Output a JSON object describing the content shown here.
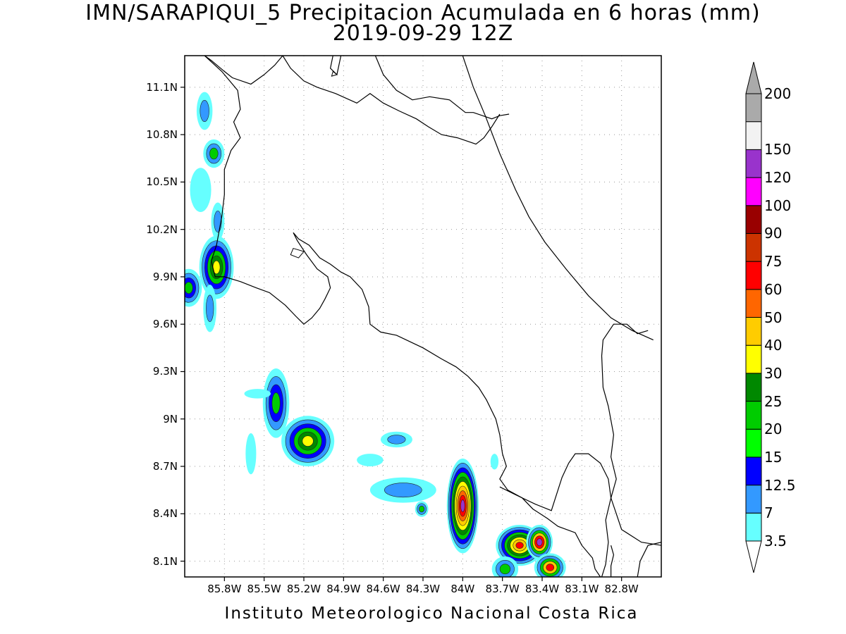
{
  "title": {
    "line1": "IMN/SARAPIQUI_5 Precipitacion Acumulada en 6 horas (mm)",
    "line2": "2019-09-29 12Z"
  },
  "footer": "Instituto Meteorologico Nacional Costa Rica",
  "map": {
    "lon_range": [
      -86.1,
      -82.5
    ],
    "lat_range": [
      8.0,
      11.3
    ],
    "lat_ticks": [
      {
        "value": 11.1,
        "label": "11.1N"
      },
      {
        "value": 10.8,
        "label": "10.8N"
      },
      {
        "value": 10.5,
        "label": "10.5N"
      },
      {
        "value": 10.2,
        "label": "10.2N"
      },
      {
        "value": 9.9,
        "label": "9.9N"
      },
      {
        "value": 9.6,
        "label": "9.6N"
      },
      {
        "value": 9.3,
        "label": "9.3N"
      },
      {
        "value": 9.0,
        "label": "9N"
      },
      {
        "value": 8.7,
        "label": "8.7N"
      },
      {
        "value": 8.4,
        "label": "8.4N"
      },
      {
        "value": 8.1,
        "label": "8.1N"
      }
    ],
    "lon_ticks": [
      {
        "value": -85.8,
        "label": "85.8W"
      },
      {
        "value": -85.5,
        "label": "85.5W"
      },
      {
        "value": -85.2,
        "label": "85.2W"
      },
      {
        "value": -84.9,
        "label": "84.9W"
      },
      {
        "value": -84.6,
        "label": "84.6W"
      },
      {
        "value": -84.3,
        "label": "84.3W"
      },
      {
        "value": -84.0,
        "label": "84W"
      },
      {
        "value": -83.7,
        "label": "83.7W"
      },
      {
        "value": -83.4,
        "label": "83.4W"
      },
      {
        "value": -83.1,
        "label": "83.1W"
      },
      {
        "value": -82.8,
        "label": "82.8W"
      }
    ],
    "grid": "dotted"
  },
  "colorbar": {
    "levels": [
      {
        "label": "3.5",
        "color": "#66ffff"
      },
      {
        "label": "7",
        "color": "#3399ff"
      },
      {
        "label": "12.5",
        "color": "#0000ff"
      },
      {
        "label": "15",
        "color": "#00ff00"
      },
      {
        "label": "20",
        "color": "#00cc00"
      },
      {
        "label": "25",
        "color": "#008800"
      },
      {
        "label": "30",
        "color": "#ffff00"
      },
      {
        "label": "40",
        "color": "#ffcc00"
      },
      {
        "label": "50",
        "color": "#ff6600"
      },
      {
        "label": "60",
        "color": "#ff0000"
      },
      {
        "label": "75",
        "color": "#cc3300"
      },
      {
        "label": "90",
        "color": "#990000"
      },
      {
        "label": "100",
        "color": "#ff00ff"
      },
      {
        "label": "120",
        "color": "#9933cc"
      },
      {
        "label": "150",
        "color": "#f2f2f2"
      },
      {
        "label": "200",
        "color": "#aaaaaa"
      }
    ],
    "under_color": "#ffffff",
    "over_color": "#aaaaaa"
  },
  "precip_cells": [
    {
      "lon": -85.95,
      "lat": 10.95,
      "rlon": 0.06,
      "rlat": 0.12,
      "levels": [
        "#66ffff",
        "#3399ff"
      ]
    },
    {
      "lon": -85.88,
      "lat": 10.68,
      "rlon": 0.08,
      "rlat": 0.09,
      "levels": [
        "#66ffff",
        "#3399ff",
        "#00cc00"
      ]
    },
    {
      "lon": -85.98,
      "lat": 10.45,
      "rlon": 0.08,
      "rlat": 0.14,
      "levels": [
        "#66ffff"
      ]
    },
    {
      "lon": -85.86,
      "lat": 9.96,
      "rlon": 0.13,
      "rlat": 0.2,
      "levels": [
        "#66ffff",
        "#3399ff",
        "#0000ff",
        "#00cc00",
        "#008800",
        "#ffff00"
      ]
    },
    {
      "lon": -86.07,
      "lat": 9.83,
      "rlon": 0.1,
      "rlat": 0.12,
      "levels": [
        "#66ffff",
        "#3399ff",
        "#0000ff",
        "#00cc00"
      ]
    },
    {
      "lon": -85.91,
      "lat": 9.7,
      "rlon": 0.05,
      "rlat": 0.15,
      "levels": [
        "#66ffff",
        "#3399ff"
      ]
    },
    {
      "lon": -85.85,
      "lat": 10.25,
      "rlon": 0.05,
      "rlat": 0.12,
      "levels": [
        "#66ffff",
        "#3399ff"
      ]
    },
    {
      "lon": -85.41,
      "lat": 9.1,
      "rlon": 0.1,
      "rlat": 0.22,
      "levels": [
        "#66ffff",
        "#3399ff",
        "#0000ff",
        "#00cc00"
      ]
    },
    {
      "lon": -85.17,
      "lat": 8.86,
      "rlon": 0.2,
      "rlat": 0.16,
      "levels": [
        "#66ffff",
        "#3399ff",
        "#0000ff",
        "#00cc00",
        "#008800",
        "#ffff00"
      ]
    },
    {
      "lon": -85.55,
      "lat": 9.16,
      "rlon": 0.1,
      "rlat": 0.03,
      "levels": [
        "#66ffff"
      ]
    },
    {
      "lon": -85.6,
      "lat": 8.78,
      "rlon": 0.04,
      "rlat": 0.13,
      "levels": [
        "#66ffff"
      ]
    },
    {
      "lon": -84.5,
      "lat": 8.87,
      "rlon": 0.12,
      "rlat": 0.05,
      "levels": [
        "#66ffff",
        "#3399ff"
      ]
    },
    {
      "lon": -84.45,
      "lat": 8.55,
      "rlon": 0.25,
      "rlat": 0.08,
      "levels": [
        "#66ffff",
        "#3399ff"
      ]
    },
    {
      "lon": -84.31,
      "lat": 8.43,
      "rlon": 0.05,
      "rlat": 0.05,
      "levels": [
        "#66ffff",
        "#3399ff",
        "#00cc00"
      ]
    },
    {
      "lon": -84.7,
      "lat": 8.74,
      "rlon": 0.1,
      "rlat": 0.04,
      "levels": [
        "#66ffff"
      ]
    },
    {
      "lon": -84.0,
      "lat": 8.45,
      "rlon": 0.12,
      "rlat": 0.3,
      "levels": [
        "#66ffff",
        "#3399ff",
        "#0000ff",
        "#00cc00",
        "#008800",
        "#ffff00",
        "#ffcc00",
        "#ff6600",
        "#ff0000",
        "#9933cc"
      ]
    },
    {
      "lon": -83.57,
      "lat": 8.2,
      "rlon": 0.18,
      "rlat": 0.13,
      "levels": [
        "#66ffff",
        "#3399ff",
        "#0000ff",
        "#00cc00",
        "#008800",
        "#ffff00",
        "#ffcc00",
        "#ff0000"
      ]
    },
    {
      "lon": -83.42,
      "lat": 8.22,
      "rlon": 0.1,
      "rlat": 0.11,
      "levels": [
        "#66ffff",
        "#3399ff",
        "#00cc00",
        "#ffcc00",
        "#ff0000",
        "#9933cc"
      ]
    },
    {
      "lon": -83.34,
      "lat": 8.06,
      "rlon": 0.12,
      "rlat": 0.09,
      "levels": [
        "#66ffff",
        "#3399ff",
        "#00cc00",
        "#ffcc00",
        "#ff0000"
      ]
    },
    {
      "lon": -83.68,
      "lat": 8.05,
      "rlon": 0.1,
      "rlat": 0.08,
      "levels": [
        "#66ffff",
        "#3399ff",
        "#00cc00"
      ]
    },
    {
      "lon": -83.76,
      "lat": 8.73,
      "rlon": 0.03,
      "rlat": 0.05,
      "levels": [
        "#66ffff"
      ]
    }
  ],
  "coastlines": [
    [
      [
        -85.95,
        11.3
      ],
      [
        -85.82,
        11.2
      ],
      [
        -85.7,
        11.08
      ],
      [
        -85.68,
        10.96
      ],
      [
        -85.73,
        10.88
      ],
      [
        -85.68,
        10.78
      ],
      [
        -85.75,
        10.7
      ],
      [
        -85.8,
        10.58
      ],
      [
        -85.8,
        10.42
      ],
      [
        -85.82,
        10.28
      ],
      [
        -85.86,
        10.1
      ],
      [
        -85.9,
        10.0
      ],
      [
        -85.87,
        9.9
      ],
      [
        -85.8,
        9.9
      ],
      [
        -85.68,
        9.87
      ],
      [
        -85.56,
        9.83
      ],
      [
        -85.46,
        9.8
      ],
      [
        -85.34,
        9.72
      ],
      [
        -85.26,
        9.65
      ],
      [
        -85.2,
        9.6
      ],
      [
        -85.14,
        9.64
      ],
      [
        -85.08,
        9.7
      ],
      [
        -85.04,
        9.76
      ],
      [
        -85.0,
        9.83
      ],
      [
        -85.02,
        9.9
      ],
      [
        -85.1,
        9.95
      ],
      [
        -85.18,
        10.04
      ],
      [
        -85.25,
        10.13
      ],
      [
        -85.28,
        10.18
      ],
      [
        -85.24,
        10.14
      ],
      [
        -85.16,
        10.1
      ],
      [
        -85.08,
        10.02
      ],
      [
        -85.0,
        9.98
      ],
      [
        -84.92,
        9.93
      ],
      [
        -84.85,
        9.9
      ],
      [
        -84.76,
        9.82
      ],
      [
        -84.71,
        9.71
      ],
      [
        -84.7,
        9.6
      ],
      [
        -84.62,
        9.55
      ],
      [
        -84.5,
        9.53
      ],
      [
        -84.3,
        9.45
      ],
      [
        -84.16,
        9.38
      ],
      [
        -84.05,
        9.33
      ],
      [
        -83.96,
        9.27
      ],
      [
        -83.88,
        9.2
      ],
      [
        -83.82,
        9.12
      ],
      [
        -83.75,
        9.0
      ],
      [
        -83.72,
        8.9
      ],
      [
        -83.7,
        8.78
      ],
      [
        -83.67,
        8.7
      ],
      [
        -83.72,
        8.62
      ],
      [
        -83.66,
        8.55
      ],
      [
        -83.55,
        8.5
      ],
      [
        -83.47,
        8.43
      ],
      [
        -83.36,
        8.37
      ],
      [
        -83.28,
        8.32
      ],
      [
        -83.15,
        8.28
      ],
      [
        -83.1,
        8.2
      ],
      [
        -83.02,
        8.12
      ],
      [
        -83.0,
        8.05
      ],
      [
        -82.96,
        8.0
      ]
    ],
    [
      [
        -83.72,
        8.57
      ],
      [
        -83.6,
        8.52
      ],
      [
        -83.45,
        8.46
      ],
      [
        -83.33,
        8.42
      ],
      [
        -83.3,
        8.5
      ],
      [
        -83.25,
        8.63
      ],
      [
        -83.2,
        8.72
      ],
      [
        -83.15,
        8.78
      ],
      [
        -83.05,
        8.78
      ],
      [
        -82.96,
        8.72
      ],
      [
        -82.9,
        8.62
      ],
      [
        -82.88,
        8.5
      ],
      [
        -82.84,
        8.4
      ],
      [
        -82.8,
        8.3
      ],
      [
        -82.65,
        8.22
      ],
      [
        -82.5,
        8.2
      ]
    ],
    [
      [
        -82.88,
        8.0
      ],
      [
        -82.88,
        8.07
      ],
      [
        -82.86,
        8.14
      ],
      [
        -82.88,
        8.2
      ]
    ],
    [
      [
        -84.66,
        11.3
      ],
      [
        -84.6,
        11.18
      ],
      [
        -84.5,
        11.08
      ],
      [
        -84.38,
        11.02
      ],
      [
        -84.25,
        11.04
      ],
      [
        -84.1,
        11.02
      ],
      [
        -83.98,
        10.94
      ],
      [
        -83.92,
        10.94
      ],
      [
        -83.85,
        10.92
      ],
      [
        -83.78,
        10.9
      ],
      [
        -83.72,
        10.92
      ],
      [
        -83.65,
        10.93
      ]
    ],
    [
      [
        -84.0,
        11.3
      ],
      [
        -83.92,
        11.1
      ],
      [
        -83.83,
        10.92
      ],
      [
        -83.72,
        10.68
      ],
      [
        -83.6,
        10.45
      ],
      [
        -83.5,
        10.28
      ],
      [
        -83.38,
        10.12
      ],
      [
        -83.22,
        9.95
      ],
      [
        -83.05,
        9.78
      ],
      [
        -82.88,
        9.64
      ],
      [
        -82.72,
        9.56
      ],
      [
        -82.56,
        9.5
      ]
    ],
    [
      [
        -85.95,
        11.3
      ],
      [
        -85.9,
        11.27
      ],
      [
        -85.8,
        11.2
      ],
      [
        -85.74,
        11.16
      ],
      [
        -85.6,
        11.12
      ],
      [
        -85.5,
        11.18
      ],
      [
        -85.42,
        11.24
      ],
      [
        -85.36,
        11.3
      ]
    ],
    [
      [
        -84.98,
        11.3
      ],
      [
        -85.0,
        11.22
      ],
      [
        -84.95,
        11.18
      ],
      [
        -84.92,
        11.3
      ]
    ],
    [
      [
        -85.36,
        11.3
      ],
      [
        -85.3,
        11.22
      ],
      [
        -85.2,
        11.14
      ],
      [
        -85.1,
        11.1
      ],
      [
        -84.96,
        11.06
      ],
      [
        -84.8,
        11.0
      ],
      [
        -84.7,
        11.06
      ],
      [
        -84.6,
        11.0
      ],
      [
        -84.48,
        10.95
      ],
      [
        -84.35,
        10.9
      ],
      [
        -84.26,
        10.85
      ],
      [
        -84.16,
        10.8
      ],
      [
        -84.04,
        10.78
      ],
      [
        -83.9,
        10.74
      ],
      [
        -83.84,
        10.78
      ],
      [
        -83.78,
        10.85
      ],
      [
        -83.72,
        10.93
      ]
    ],
    [
      [
        -82.95,
        8.0
      ],
      [
        -82.92,
        8.08
      ],
      [
        -82.9,
        8.22
      ],
      [
        -82.92,
        8.36
      ],
      [
        -82.88,
        8.5
      ],
      [
        -82.84,
        8.62
      ],
      [
        -82.88,
        8.76
      ],
      [
        -82.86,
        8.9
      ],
      [
        -82.9,
        9.08
      ],
      [
        -82.94,
        9.2
      ],
      [
        -82.95,
        9.4
      ],
      [
        -82.94,
        9.5
      ],
      [
        -82.86,
        9.6
      ],
      [
        -82.76,
        9.6
      ],
      [
        -82.68,
        9.54
      ],
      [
        -82.6,
        9.56
      ]
    ],
    [
      [
        -82.68,
        8.0
      ],
      [
        -82.66,
        8.1
      ],
      [
        -82.6,
        8.2
      ],
      [
        -82.5,
        8.22
      ]
    ]
  ]
}
